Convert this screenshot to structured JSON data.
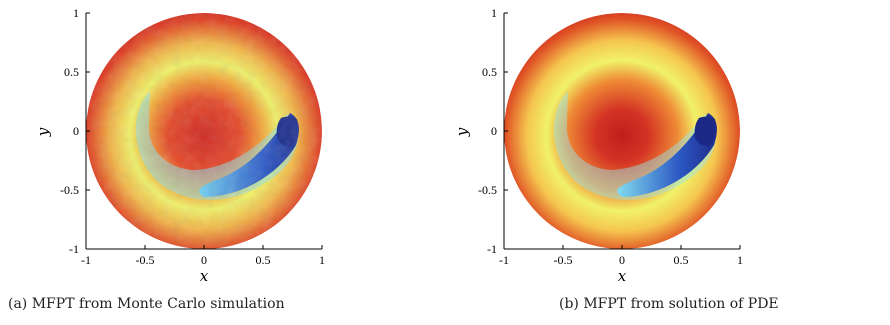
{
  "figure": {
    "panels": [
      {
        "id": "a",
        "caption": "(a) MFPT from Monte Carlo simulation",
        "xlabel": "x",
        "ylabel": "y",
        "xticks": [
          "-1",
          "-0.5",
          "0",
          "0.5",
          "1"
        ],
        "yticks": [
          "-1",
          "-0.5",
          "0",
          "0.5",
          "1"
        ]
      },
      {
        "id": "b",
        "caption": "(b) MFPT from solution of PDE",
        "xlabel": "x",
        "ylabel": "y",
        "xticks": [
          "-1",
          "-0.5",
          "0",
          "0.5",
          "1"
        ],
        "yticks": [
          "-1",
          "-0.5",
          "0",
          "0.5",
          "1"
        ]
      }
    ]
  },
  "chart_data": [
    {
      "type": "heatmap",
      "title": "",
      "xlabel": "x",
      "ylabel": "y",
      "xlim": [
        -1,
        1
      ],
      "ylim": [
        -1,
        1
      ],
      "xticks": [
        -1,
        -0.5,
        0,
        0.5,
        1
      ],
      "yticks": [
        -1,
        -0.5,
        0,
        0.5,
        1
      ],
      "domain": "unit disk",
      "colormap": [
        "#2a2f9a",
        "#3bb6e8",
        "#f3f06a",
        "#f2a23a",
        "#d8281f"
      ],
      "notes": "noisy field"
    },
    {
      "type": "heatmap",
      "title": "",
      "xlabel": "x",
      "ylabel": "y",
      "xlim": [
        -1,
        1
      ],
      "ylim": [
        -1,
        1
      ],
      "xticks": [
        -1,
        -0.5,
        0,
        0.5,
        1
      ],
      "yticks": [
        -1,
        -0.5,
        0,
        0.5,
        1
      ],
      "domain": "unit disk",
      "colormap": [
        "#2a2f9a",
        "#3bb6e8",
        "#f3f06a",
        "#f2a23a",
        "#d8281f"
      ],
      "notes": "smooth field"
    }
  ]
}
